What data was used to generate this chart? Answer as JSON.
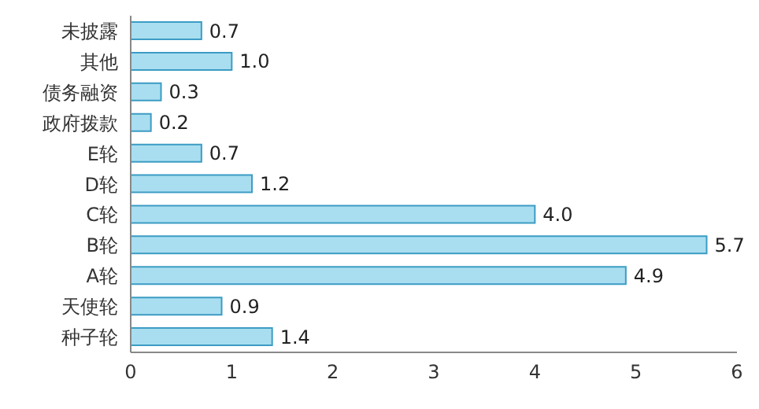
{
  "chart_data": {
    "type": "bar",
    "orientation": "horizontal",
    "categories": [
      "未披露",
      "其他",
      "债务融资",
      "政府拨款",
      "E轮",
      "D轮",
      "C轮",
      "B轮",
      "A轮",
      "天使轮",
      "种子轮"
    ],
    "values": [
      0.7,
      1.0,
      0.3,
      0.2,
      0.7,
      1.2,
      4.0,
      5.7,
      4.9,
      0.9,
      1.4
    ],
    "value_labels": [
      "0.7",
      "1.0",
      "0.3",
      "0.2",
      "0.7",
      "1.2",
      "4.0",
      "5.7",
      "4.9",
      "0.9",
      "1.4"
    ],
    "color": "#a9def0",
    "xlim": [
      0,
      6
    ],
    "xticks": [
      0,
      1,
      2,
      3,
      4,
      5,
      6
    ],
    "grid": false,
    "legend": false
  }
}
